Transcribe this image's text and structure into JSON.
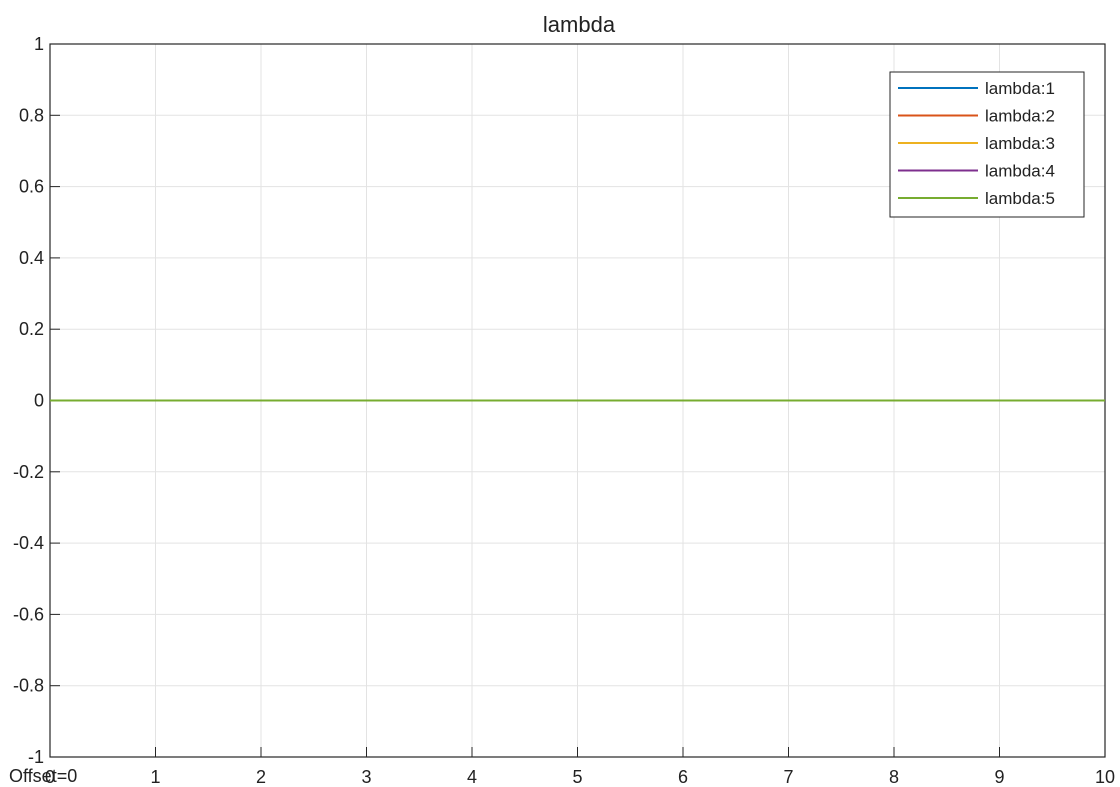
{
  "chart_data": {
    "type": "line",
    "title": "lambda",
    "xlabel": "",
    "ylabel": "",
    "xlim": [
      0,
      10
    ],
    "ylim": [
      -1,
      1
    ],
    "x_ticks": [
      0,
      1,
      2,
      3,
      4,
      5,
      6,
      7,
      8,
      9,
      10
    ],
    "y_ticks": [
      -1,
      -0.8,
      -0.6,
      -0.4,
      -0.2,
      0,
      0.2,
      0.4,
      0.6,
      0.8,
      1
    ],
    "grid": true,
    "legend_position": "top-right",
    "offset_label": "Offset=0",
    "series": [
      {
        "name": "lambda:1",
        "color": "#0072BD",
        "x": [
          0,
          10
        ],
        "y": [
          0,
          0
        ]
      },
      {
        "name": "lambda:2",
        "color": "#D95319",
        "x": [
          0,
          10
        ],
        "y": [
          0,
          0
        ]
      },
      {
        "name": "lambda:3",
        "color": "#EDB120",
        "x": [
          0,
          10
        ],
        "y": [
          0,
          0
        ]
      },
      {
        "name": "lambda:4",
        "color": "#7E2F8E",
        "x": [
          0,
          10
        ],
        "y": [
          0,
          0
        ]
      },
      {
        "name": "lambda:5",
        "color": "#77AC30",
        "x": [
          0,
          10
        ],
        "y": [
          0,
          0
        ]
      }
    ]
  }
}
